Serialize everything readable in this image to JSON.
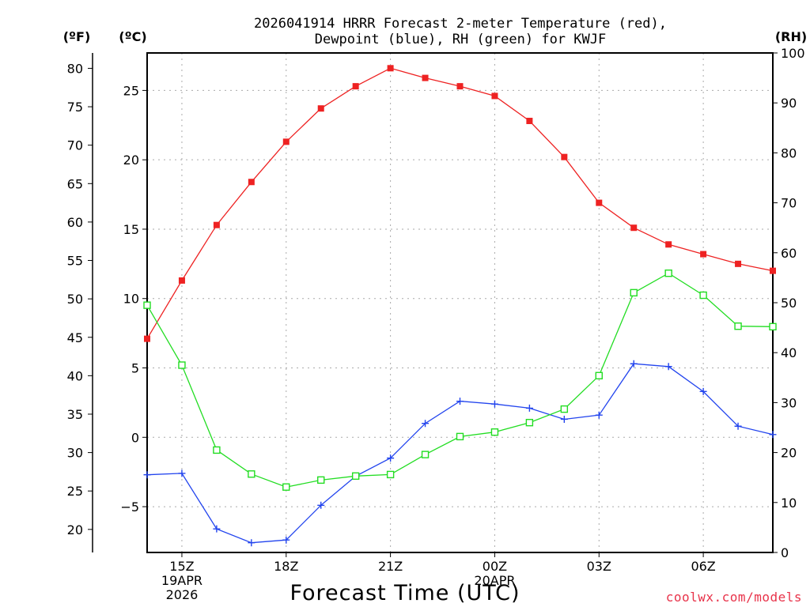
{
  "chart_data": {
    "type": "line",
    "title_line1": "2026041914 HRRR Forecast 2-meter Temperature (red),",
    "title_line2": "Dewpoint (blue), RH (green) for KWJF",
    "xlabel": "Forecast Time (UTC)",
    "credit": "coolwx.com/models",
    "units": {
      "left_outer": "(ºF)",
      "left_inner": "(ºC)",
      "right": "(RH)"
    },
    "x_hours": [
      14,
      15,
      16,
      17,
      18,
      19,
      20,
      21,
      22,
      23,
      24,
      25,
      26,
      27,
      28,
      29,
      30,
      31,
      32
    ],
    "x_ticks": [
      {
        "hour": 15,
        "label": "15Z",
        "sub1": "19APR",
        "sub2": "2026"
      },
      {
        "hour": 18,
        "label": "18Z",
        "sub1": "",
        "sub2": ""
      },
      {
        "hour": 21,
        "label": "21Z",
        "sub1": "",
        "sub2": ""
      },
      {
        "hour": 24,
        "label": "00Z",
        "sub1": "20APR",
        "sub2": ""
      },
      {
        "hour": 27,
        "label": "03Z",
        "sub1": "",
        "sub2": ""
      },
      {
        "hour": 30,
        "label": "06Z",
        "sub1": "",
        "sub2": ""
      }
    ],
    "c_axis": {
      "min": -8.3,
      "max": 27.7,
      "ticks": [
        -5,
        0,
        5,
        10,
        15,
        20,
        25
      ],
      "tick_labels": [
        "−5",
        "0",
        "5",
        "10",
        "15",
        "20",
        "25"
      ]
    },
    "f_axis": {
      "min": 17,
      "max": 82,
      "ticks": [
        20,
        25,
        30,
        35,
        40,
        45,
        50,
        55,
        60,
        65,
        70,
        75,
        80
      ],
      "tick_labels": [
        "20",
        "25",
        "30",
        "35",
        "40",
        "45",
        "50",
        "55",
        "60",
        "65",
        "70",
        "75",
        "80"
      ]
    },
    "rh_axis": {
      "min": 0,
      "max": 100,
      "ticks": [
        0,
        10,
        20,
        30,
        40,
        50,
        60,
        70,
        80,
        90,
        100
      ],
      "tick_labels": [
        "0",
        "10",
        "20",
        "30",
        "40",
        "50",
        "60",
        "70",
        "80",
        "90",
        "100"
      ]
    },
    "series": [
      {
        "name": "Temperature",
        "units": "C",
        "color": "#ee2222",
        "marker": "filled-square",
        "values": [
          7.1,
          11.3,
          15.3,
          18.4,
          21.3,
          23.7,
          25.3,
          26.6,
          25.9,
          25.3,
          24.6,
          22.8,
          20.2,
          16.9,
          15.1,
          13.9,
          13.2,
          12.5,
          12.0
        ]
      },
      {
        "name": "Dewpoint",
        "units": "C",
        "color": "#2244ee",
        "marker": "plus",
        "values": [
          -2.7,
          -2.6,
          -6.6,
          -7.6,
          -7.4,
          -4.9,
          -2.8,
          -1.5,
          1.0,
          2.6,
          2.4,
          2.1,
          1.3,
          1.6,
          5.3,
          5.1,
          3.3,
          0.8,
          0.2
        ]
      },
      {
        "name": "RH",
        "units": "%",
        "color": "#22dd22",
        "marker": "open-square",
        "values": [
          49.5,
          37.5,
          20.5,
          15.7,
          13.1,
          14.5,
          15.3,
          15.6,
          19.6,
          23.2,
          24.1,
          26.0,
          28.7,
          35.4,
          52.0,
          55.9,
          51.5,
          45.3,
          45.2
        ]
      }
    ]
  }
}
